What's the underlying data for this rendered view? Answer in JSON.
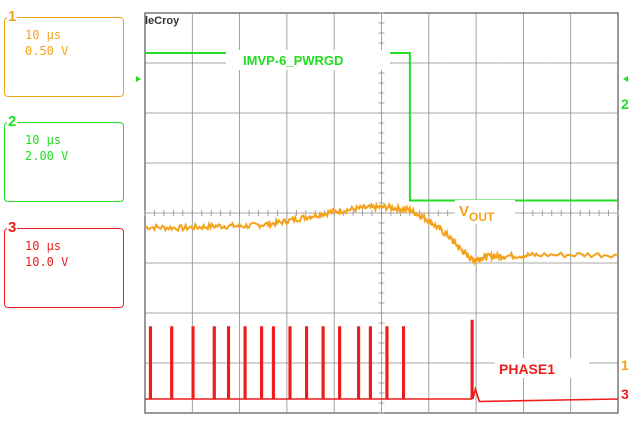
{
  "brand": "leCroy",
  "channels": [
    {
      "num": "1",
      "timebase": "10 μs",
      "scale": "0.50 V",
      "color": "#f5a21b"
    },
    {
      "num": "2",
      "timebase": "10 μs",
      "scale": "2.00 V",
      "color": "#22dd22"
    },
    {
      "num": "3",
      "timebase": "10 μs",
      "scale": "10.0 V",
      "color": "#ee1c1c"
    }
  ],
  "annotations": {
    "pwrgd": "IMVP-6_PWRGD",
    "vout_main": "V",
    "vout_sub": "OUT",
    "phase": "PHASE1"
  },
  "markers": {
    "ch1": "1",
    "ch2": "2",
    "ch3": "3"
  },
  "chart_data": {
    "type": "line",
    "title": "",
    "xlabel": "",
    "ylabel": "",
    "grid": true,
    "series": [
      {
        "name": "IMVP-6_PWRGD",
        "color": "#22dd22",
        "points": [
          [
            0,
            7.2
          ],
          [
            5.6,
            7.2
          ],
          [
            5.6,
            4.25
          ],
          [
            10,
            4.25
          ]
        ]
      },
      {
        "name": "VOUT",
        "color": "#f5a21b",
        "points": [
          [
            0,
            3.72
          ],
          [
            0.8,
            3.7
          ],
          [
            1.5,
            3.74
          ],
          [
            2.2,
            3.74
          ],
          [
            2.8,
            3.8
          ],
          [
            3.4,
            3.92
          ],
          [
            4.0,
            4.03
          ],
          [
            4.6,
            4.1
          ],
          [
            5.1,
            4.12
          ],
          [
            5.6,
            4.06
          ],
          [
            6.0,
            3.85
          ],
          [
            6.4,
            3.55
          ],
          [
            6.7,
            3.25
          ],
          [
            6.95,
            3.05
          ],
          [
            7.2,
            3.13
          ],
          [
            7.6,
            3.14
          ],
          [
            8.3,
            3.16
          ],
          [
            10,
            3.17
          ]
        ]
      },
      {
        "name": "PHASE1",
        "color": "#ee1c1c",
        "points": [
          [
            0,
            0.28
          ],
          [
            10,
            0.28
          ]
        ],
        "pulses_x": [
          0.1,
          0.55,
          1.0,
          1.45,
          1.75,
          2.1,
          2.45,
          2.7,
          3.05,
          3.4,
          3.75,
          4.1,
          4.5,
          4.75,
          5.1,
          5.45,
          6.9
        ]
      }
    ]
  }
}
